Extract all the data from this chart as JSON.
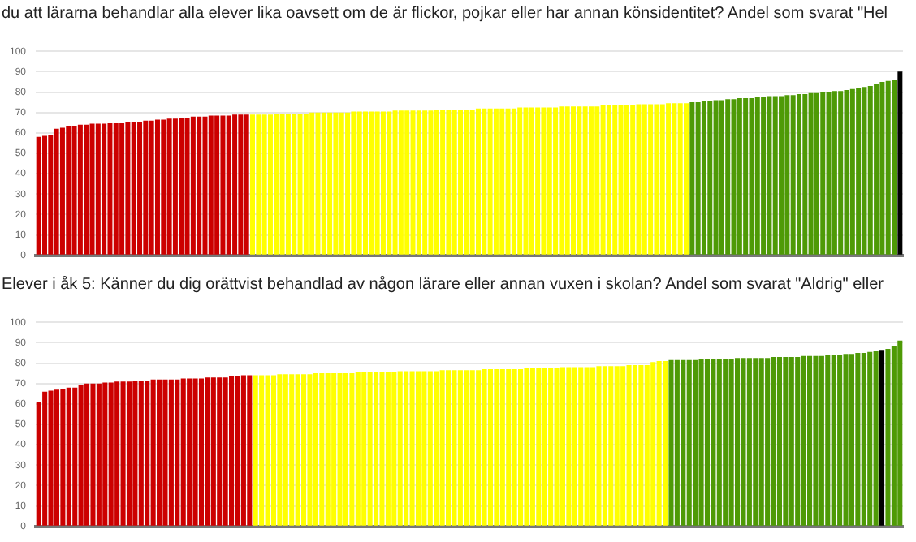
{
  "chart_data": [
    {
      "type": "bar",
      "title": "du att lärarna behandlar alla elever lika oavsett om de är flickor, pojkar eller har annan könsidentitet? Andel som svarat \"Hel",
      "categories": [
        null,
        null,
        null,
        null,
        null,
        null,
        null,
        null,
        null,
        null,
        null,
        null,
        null,
        null,
        null,
        null,
        null,
        null,
        null,
        null,
        null,
        null,
        null,
        null,
        null,
        null,
        null,
        null,
        null,
        null,
        null,
        null,
        null,
        null,
        null,
        null,
        null,
        null,
        null,
        null,
        null,
        null,
        null,
        null,
        null,
        null,
        null,
        null,
        null,
        null,
        null,
        null,
        null,
        null,
        null,
        null,
        null,
        null,
        null,
        null,
        null,
        null,
        null,
        null,
        null,
        null,
        null,
        null,
        null,
        null,
        null,
        null,
        null,
        null,
        null,
        null,
        null,
        null,
        null,
        null,
        null,
        null,
        null,
        null,
        null,
        null,
        null,
        null,
        null,
        null,
        null,
        null,
        null,
        null,
        null,
        null,
        null,
        null,
        null,
        null,
        null,
        null,
        null,
        null,
        null,
        null,
        null,
        null,
        null,
        null,
        null,
        null,
        null,
        null,
        null,
        null,
        null,
        null,
        null,
        null,
        null,
        null,
        null,
        null,
        null,
        null,
        null,
        null,
        null,
        null,
        null,
        null,
        null,
        null,
        null,
        null,
        null,
        null,
        null,
        null,
        null,
        null,
        null,
        null,
        null,
        null
      ],
      "values": [
        58,
        58.5,
        59,
        62,
        62.5,
        63.5,
        63.5,
        64,
        64,
        64.5,
        64.5,
        64.5,
        65,
        65,
        65,
        65.5,
        65.5,
        65.5,
        66,
        66,
        66.5,
        66.5,
        67,
        67,
        67.5,
        67.5,
        68,
        68,
        68,
        68.5,
        68.5,
        68.5,
        68.5,
        69,
        69,
        69,
        69,
        69,
        69,
        69,
        69.5,
        69.5,
        69.5,
        69.5,
        69.5,
        69.5,
        70,
        70,
        70,
        70,
        70,
        70,
        70,
        70.5,
        70.5,
        70.5,
        70.5,
        70.5,
        70.5,
        70.5,
        71,
        71,
        71,
        71,
        71,
        71,
        71,
        71.5,
        71.5,
        71.5,
        71.5,
        71.5,
        71.5,
        71.5,
        72,
        72,
        72,
        72,
        72,
        72,
        72,
        72.5,
        72.5,
        72.5,
        72.5,
        72.5,
        72.5,
        72.5,
        73,
        73,
        73,
        73,
        73,
        73,
        73,
        73.5,
        73.5,
        73.5,
        73.5,
        73.5,
        73.5,
        74,
        74,
        74,
        74,
        74,
        74.5,
        74.5,
        74.5,
        74.5,
        75,
        75,
        75.5,
        75.5,
        76,
        76,
        76.5,
        76.5,
        77,
        77,
        77,
        77.5,
        77.5,
        78,
        78,
        78,
        78.5,
        78.5,
        79,
        79,
        79.5,
        79.5,
        80,
        80,
        80.5,
        80.5,
        81,
        81.5,
        82,
        82.5,
        83,
        84,
        85,
        85.5,
        86,
        90
      ],
      "colors": [
        "#cc0000",
        "#cc0000",
        "#cc0000",
        "#cc0000",
        "#cc0000",
        "#cc0000",
        "#cc0000",
        "#cc0000",
        "#cc0000",
        "#cc0000",
        "#cc0000",
        "#cc0000",
        "#cc0000",
        "#cc0000",
        "#cc0000",
        "#cc0000",
        "#cc0000",
        "#cc0000",
        "#cc0000",
        "#cc0000",
        "#cc0000",
        "#cc0000",
        "#cc0000",
        "#cc0000",
        "#cc0000",
        "#cc0000",
        "#cc0000",
        "#cc0000",
        "#cc0000",
        "#cc0000",
        "#cc0000",
        "#cc0000",
        "#cc0000",
        "#cc0000",
        "#cc0000",
        "#cc0000",
        "#ffff00",
        "#ffff00",
        "#ffff00",
        "#ffff00",
        "#ffff00",
        "#ffff00",
        "#ffff00",
        "#ffff00",
        "#ffff00",
        "#ffff00",
        "#ffff00",
        "#ffff00",
        "#ffff00",
        "#ffff00",
        "#ffff00",
        "#ffff00",
        "#ffff00",
        "#ffff00",
        "#ffff00",
        "#ffff00",
        "#ffff00",
        "#ffff00",
        "#ffff00",
        "#ffff00",
        "#ffff00",
        "#ffff00",
        "#ffff00",
        "#ffff00",
        "#ffff00",
        "#ffff00",
        "#ffff00",
        "#ffff00",
        "#ffff00",
        "#ffff00",
        "#ffff00",
        "#ffff00",
        "#ffff00",
        "#ffff00",
        "#ffff00",
        "#ffff00",
        "#ffff00",
        "#ffff00",
        "#ffff00",
        "#ffff00",
        "#ffff00",
        "#ffff00",
        "#ffff00",
        "#ffff00",
        "#ffff00",
        "#ffff00",
        "#ffff00",
        "#ffff00",
        "#ffff00",
        "#ffff00",
        "#ffff00",
        "#ffff00",
        "#ffff00",
        "#ffff00",
        "#ffff00",
        "#ffff00",
        "#ffff00",
        "#ffff00",
        "#ffff00",
        "#ffff00",
        "#ffff00",
        "#ffff00",
        "#ffff00",
        "#ffff00",
        "#ffff00",
        "#ffff00",
        "#ffff00",
        "#ffff00",
        "#ffff00",
        "#ffff00",
        "#4e9a06",
        "#4e9a06",
        "#4e9a06",
        "#4e9a06",
        "#4e9a06",
        "#4e9a06",
        "#4e9a06",
        "#4e9a06",
        "#4e9a06",
        "#4e9a06",
        "#4e9a06",
        "#4e9a06",
        "#4e9a06",
        "#4e9a06",
        "#4e9a06",
        "#4e9a06",
        "#4e9a06",
        "#4e9a06",
        "#4e9a06",
        "#4e9a06",
        "#4e9a06",
        "#4e9a06",
        "#4e9a06",
        "#4e9a06",
        "#4e9a06",
        "#4e9a06",
        "#4e9a06",
        "#4e9a06",
        "#4e9a06",
        "#4e9a06",
        "#4e9a06",
        "#4e9a06",
        "#4e9a06",
        "#4e9a06",
        "#4e9a06",
        "#000000"
      ],
      "ylim": [
        0,
        100
      ],
      "yticks": [
        0,
        10,
        20,
        30,
        40,
        50,
        60,
        70,
        80,
        90,
        100
      ],
      "grid": "y",
      "tick_labels": "y"
    },
    {
      "type": "bar",
      "title": "Elever i åk 5: Känner du dig orättvist behandlad av någon lärare eller annan vuxen i skolan? Andel som svarat \"Aldrig\" eller",
      "categories": [
        null,
        null,
        null,
        null,
        null,
        null,
        null,
        null,
        null,
        null,
        null,
        null,
        null,
        null,
        null,
        null,
        null,
        null,
        null,
        null,
        null,
        null,
        null,
        null,
        null,
        null,
        null,
        null,
        null,
        null,
        null,
        null,
        null,
        null,
        null,
        null,
        null,
        null,
        null,
        null,
        null,
        null,
        null,
        null,
        null,
        null,
        null,
        null,
        null,
        null,
        null,
        null,
        null,
        null,
        null,
        null,
        null,
        null,
        null,
        null,
        null,
        null,
        null,
        null,
        null,
        null,
        null,
        null,
        null,
        null,
        null,
        null,
        null,
        null,
        null,
        null,
        null,
        null,
        null,
        null,
        null,
        null,
        null,
        null,
        null,
        null,
        null,
        null,
        null,
        null,
        null,
        null,
        null,
        null,
        null,
        null,
        null,
        null,
        null,
        null,
        null,
        null,
        null,
        null,
        null,
        null,
        null,
        null,
        null,
        null,
        null,
        null,
        null,
        null,
        null,
        null,
        null,
        null,
        null,
        null,
        null,
        null,
        null,
        null,
        null,
        null,
        null,
        null,
        null,
        null,
        null,
        null,
        null,
        null,
        null,
        null,
        null,
        null,
        null,
        null,
        null,
        null,
        null,
        null
      ],
      "values": [
        61,
        66,
        66.5,
        67,
        67.5,
        68,
        68,
        69.5,
        70,
        70,
        70,
        70.5,
        70.5,
        71,
        71,
        71,
        71.5,
        71.5,
        71.5,
        72,
        72,
        72,
        72,
        72,
        72.5,
        72.5,
        72.5,
        72.5,
        73,
        73,
        73,
        73,
        73.5,
        73.5,
        74,
        74,
        74,
        74,
        74,
        74,
        74.5,
        74.5,
        74.5,
        74.5,
        74.5,
        74.5,
        75,
        75,
        75,
        75,
        75,
        75,
        75,
        75.5,
        75.5,
        75.5,
        75.5,
        75.5,
        75.5,
        75.5,
        76,
        76,
        76,
        76,
        76,
        76,
        76,
        76.5,
        76.5,
        76.5,
        76.5,
        76.5,
        76.5,
        76.5,
        77,
        77,
        77,
        77,
        77,
        77,
        77,
        77.5,
        77.5,
        77.5,
        77.5,
        77.5,
        77.5,
        78,
        78,
        78,
        78,
        78,
        78,
        78.5,
        78.5,
        78.5,
        78.5,
        78.5,
        79,
        79,
        79,
        79,
        80.5,
        81,
        81,
        81.5,
        81.5,
        81.5,
        81.5,
        81.5,
        82,
        82,
        82,
        82,
        82,
        82,
        82.5,
        82.5,
        82.5,
        82.5,
        82.5,
        82.5,
        83,
        83,
        83,
        83,
        83,
        83.5,
        83.5,
        83.5,
        83.5,
        84,
        84,
        84,
        84.5,
        84.5,
        85,
        85,
        85.5,
        86,
        86.5,
        87,
        88.5,
        91
      ],
      "colors": [
        "#cc0000",
        "#cc0000",
        "#cc0000",
        "#cc0000",
        "#cc0000",
        "#cc0000",
        "#cc0000",
        "#cc0000",
        "#cc0000",
        "#cc0000",
        "#cc0000",
        "#cc0000",
        "#cc0000",
        "#cc0000",
        "#cc0000",
        "#cc0000",
        "#cc0000",
        "#cc0000",
        "#cc0000",
        "#cc0000",
        "#cc0000",
        "#cc0000",
        "#cc0000",
        "#cc0000",
        "#cc0000",
        "#cc0000",
        "#cc0000",
        "#cc0000",
        "#cc0000",
        "#cc0000",
        "#cc0000",
        "#cc0000",
        "#cc0000",
        "#cc0000",
        "#cc0000",
        "#cc0000",
        "#ffff00",
        "#ffff00",
        "#ffff00",
        "#ffff00",
        "#ffff00",
        "#ffff00",
        "#ffff00",
        "#ffff00",
        "#ffff00",
        "#ffff00",
        "#ffff00",
        "#ffff00",
        "#ffff00",
        "#ffff00",
        "#ffff00",
        "#ffff00",
        "#ffff00",
        "#ffff00",
        "#ffff00",
        "#ffff00",
        "#ffff00",
        "#ffff00",
        "#ffff00",
        "#ffff00",
        "#ffff00",
        "#ffff00",
        "#ffff00",
        "#ffff00",
        "#ffff00",
        "#ffff00",
        "#ffff00",
        "#ffff00",
        "#ffff00",
        "#ffff00",
        "#ffff00",
        "#ffff00",
        "#ffff00",
        "#ffff00",
        "#ffff00",
        "#ffff00",
        "#ffff00",
        "#ffff00",
        "#ffff00",
        "#ffff00",
        "#ffff00",
        "#ffff00",
        "#ffff00",
        "#ffff00",
        "#ffff00",
        "#ffff00",
        "#ffff00",
        "#ffff00",
        "#ffff00",
        "#ffff00",
        "#ffff00",
        "#ffff00",
        "#ffff00",
        "#ffff00",
        "#ffff00",
        "#ffff00",
        "#ffff00",
        "#ffff00",
        "#ffff00",
        "#ffff00",
        "#ffff00",
        "#ffff00",
        "#ffff00",
        "#ffff00",
        "#ffff00",
        "#4e9a06",
        "#4e9a06",
        "#4e9a06",
        "#4e9a06",
        "#4e9a06",
        "#4e9a06",
        "#4e9a06",
        "#4e9a06",
        "#4e9a06",
        "#4e9a06",
        "#4e9a06",
        "#4e9a06",
        "#4e9a06",
        "#4e9a06",
        "#4e9a06",
        "#4e9a06",
        "#4e9a06",
        "#4e9a06",
        "#4e9a06",
        "#4e9a06",
        "#4e9a06",
        "#4e9a06",
        "#4e9a06",
        "#4e9a06",
        "#4e9a06",
        "#4e9a06",
        "#4e9a06",
        "#4e9a06",
        "#4e9a06",
        "#4e9a06",
        "#4e9a06",
        "#4e9a06",
        "#4e9a06",
        "#4e9a06",
        "#4e9a06",
        "#000000",
        "#4e9a06",
        "#4e9a06",
        "#4e9a06"
      ],
      "ylim": [
        0,
        100
      ],
      "yticks": [
        0,
        10,
        20,
        30,
        40,
        50,
        60,
        70,
        80,
        90,
        100
      ],
      "grid": "y",
      "tick_labels": "y"
    }
  ]
}
